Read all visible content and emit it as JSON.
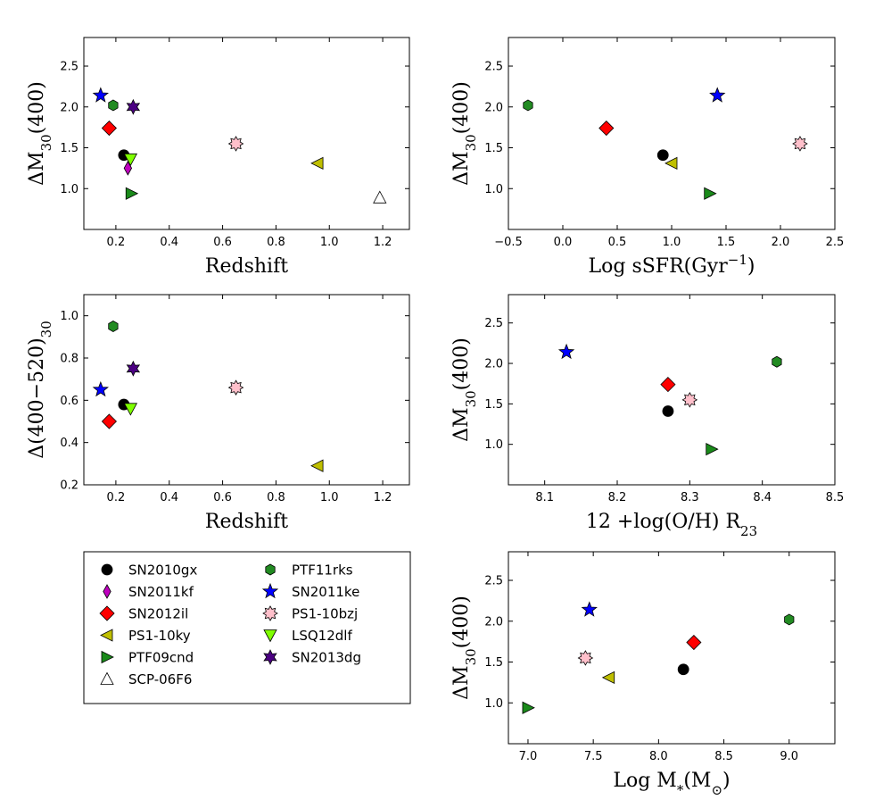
{
  "figure_label": "",
  "chart_data": [
    {
      "type": "scatter",
      "xlabel": "Redshift",
      "ylabel": "ΔM30(400)",
      "xlim": [
        0.08,
        1.3
      ],
      "ylim": [
        0.5,
        2.85
      ],
      "xticks": [
        "0.2",
        "0.4",
        "0.6",
        "0.8",
        "1.0",
        "1.2"
      ],
      "yticks": [
        "1.0",
        "1.5",
        "2.0",
        "2.5"
      ],
      "points": [
        {
          "series": "SN2010gx",
          "x": 0.23,
          "y": 1.41
        },
        {
          "series": "SN2011kf",
          "x": 0.245,
          "y": 1.25
        },
        {
          "series": "SN2012il",
          "x": 0.175,
          "y": 1.74
        },
        {
          "series": "PS1-10ky",
          "x": 0.956,
          "y": 1.31
        },
        {
          "series": "PTF09cnd",
          "x": 0.258,
          "y": 0.94
        },
        {
          "series": "SCP-06F6",
          "x": 1.189,
          "y": 0.89
        },
        {
          "series": "PTF11rks",
          "x": 0.19,
          "y": 2.02
        },
        {
          "series": "SN2011ke",
          "x": 0.143,
          "y": 2.14
        },
        {
          "series": "PS1-10bzj",
          "x": 0.65,
          "y": 1.55
        },
        {
          "series": "LSQ12dlf",
          "x": 0.255,
          "y": 1.36
        },
        {
          "series": "SN2013dg",
          "x": 0.265,
          "y": 2.0
        }
      ]
    },
    {
      "type": "scatter",
      "xlabel": "Log sSFR(Gyr⁻¹)",
      "ylabel": "ΔM30(400)",
      "xlim": [
        -0.5,
        2.5
      ],
      "ylim": [
        0.5,
        2.85
      ],
      "xticks": [
        "−0.5",
        "0.0",
        "0.5",
        "1.0",
        "1.5",
        "2.0",
        "2.5"
      ],
      "yticks": [
        "1.0",
        "1.5",
        "2.0",
        "2.5"
      ],
      "points": [
        {
          "series": "PTF11rks",
          "x": -0.32,
          "y": 2.02
        },
        {
          "series": "SN2012il",
          "x": 0.4,
          "y": 1.74
        },
        {
          "series": "SN2010gx",
          "x": 0.92,
          "y": 1.41
        },
        {
          "series": "PS1-10ky",
          "x": 1.0,
          "y": 1.31
        },
        {
          "series": "PTF09cnd",
          "x": 1.35,
          "y": 0.94
        },
        {
          "series": "SN2011ke",
          "x": 1.42,
          "y": 2.14
        },
        {
          "series": "PS1-10bzj",
          "x": 2.18,
          "y": 1.55
        }
      ]
    },
    {
      "type": "scatter",
      "xlabel": "Redshift",
      "ylabel": "Δ(400−520)30",
      "xlim": [
        0.08,
        1.3
      ],
      "ylim": [
        0.2,
        1.1
      ],
      "xticks": [
        "0.2",
        "0.4",
        "0.6",
        "0.8",
        "1.0",
        "1.2"
      ],
      "yticks": [
        "0.2",
        "0.4",
        "0.6",
        "0.8",
        "1.0"
      ],
      "points": [
        {
          "series": "PTF11rks",
          "x": 0.19,
          "y": 0.95
        },
        {
          "series": "SN2013dg",
          "x": 0.265,
          "y": 0.75
        },
        {
          "series": "SN2011ke",
          "x": 0.143,
          "y": 0.65
        },
        {
          "series": "SN2010gx",
          "x": 0.23,
          "y": 0.58
        },
        {
          "series": "LSQ12dlf",
          "x": 0.255,
          "y": 0.56
        },
        {
          "series": "SN2012il",
          "x": 0.175,
          "y": 0.5
        },
        {
          "series": "PS1-10bzj",
          "x": 0.65,
          "y": 0.66
        },
        {
          "series": "PS1-10ky",
          "x": 0.956,
          "y": 0.29
        }
      ]
    },
    {
      "type": "scatter",
      "xlabel": "12 +log(O/H) R23",
      "ylabel": "ΔM30(400)",
      "xlim": [
        8.05,
        8.5
      ],
      "ylim": [
        0.5,
        2.85
      ],
      "xticks": [
        "8.1",
        "8.2",
        "8.3",
        "8.4",
        "8.5"
      ],
      "yticks": [
        "1.0",
        "1.5",
        "2.0",
        "2.5"
      ],
      "points": [
        {
          "series": "SN2011ke",
          "x": 8.13,
          "y": 2.14
        },
        {
          "series": "SN2012il",
          "x": 8.27,
          "y": 1.74
        },
        {
          "series": "SN2010gx",
          "x": 8.27,
          "y": 1.41
        },
        {
          "series": "PS1-10bzj",
          "x": 8.3,
          "y": 1.55
        },
        {
          "series": "PTF09cnd",
          "x": 8.33,
          "y": 0.94
        },
        {
          "series": "PTF11rks",
          "x": 8.42,
          "y": 2.02
        }
      ]
    },
    {
      "type": "scatter",
      "xlabel": "Log M*(M⊙)",
      "ylabel": "ΔM30(400)",
      "xlim": [
        6.85,
        9.35
      ],
      "ylim": [
        0.5,
        2.85
      ],
      "xticks": [
        "7.0",
        "7.5",
        "8.0",
        "8.5",
        "9.0"
      ],
      "yticks": [
        "1.0",
        "1.5",
        "2.0",
        "2.5"
      ],
      "points": [
        {
          "series": "PTF09cnd",
          "x": 7.0,
          "y": 0.94
        },
        {
          "series": "PS1-10bzj",
          "x": 7.44,
          "y": 1.55
        },
        {
          "series": "SN2011ke",
          "x": 7.47,
          "y": 2.14
        },
        {
          "series": "PS1-10ky",
          "x": 7.62,
          "y": 1.31
        },
        {
          "series": "SN2010gx",
          "x": 8.19,
          "y": 1.41
        },
        {
          "series": "SN2012il",
          "x": 8.27,
          "y": 1.74
        },
        {
          "series": "PTF11rks",
          "x": 9.0,
          "y": 2.02
        }
      ]
    }
  ],
  "legend": {
    "entries": [
      {
        "name": "SN2010gx",
        "marker": "circle",
        "color": "#000000"
      },
      {
        "name": "SN2011kf",
        "marker": "thin_diamond",
        "color": "#bf00bf"
      },
      {
        "name": "SN2012il",
        "marker": "diamond",
        "color": "#ff0000"
      },
      {
        "name": "PS1-10ky",
        "marker": "triangle_left",
        "color": "#bfbf00"
      },
      {
        "name": "PTF09cnd",
        "marker": "triangle_right",
        "color": "#1a8a1a"
      },
      {
        "name": "SCP-06F6",
        "marker": "triangle_up_open",
        "color": "#ffffff"
      },
      {
        "name": "PTF11rks",
        "marker": "hexagon",
        "color": "#228b22"
      },
      {
        "name": "SN2011ke",
        "marker": "star5",
        "color": "#0000ff"
      },
      {
        "name": "PS1-10bzj",
        "marker": "star8",
        "color": "#ffc0cb"
      },
      {
        "name": "LSQ12dlf",
        "marker": "triangle_down",
        "color": "#7fff00"
      },
      {
        "name": "SN2013dg",
        "marker": "star6",
        "color": "#4b0082"
      }
    ]
  }
}
